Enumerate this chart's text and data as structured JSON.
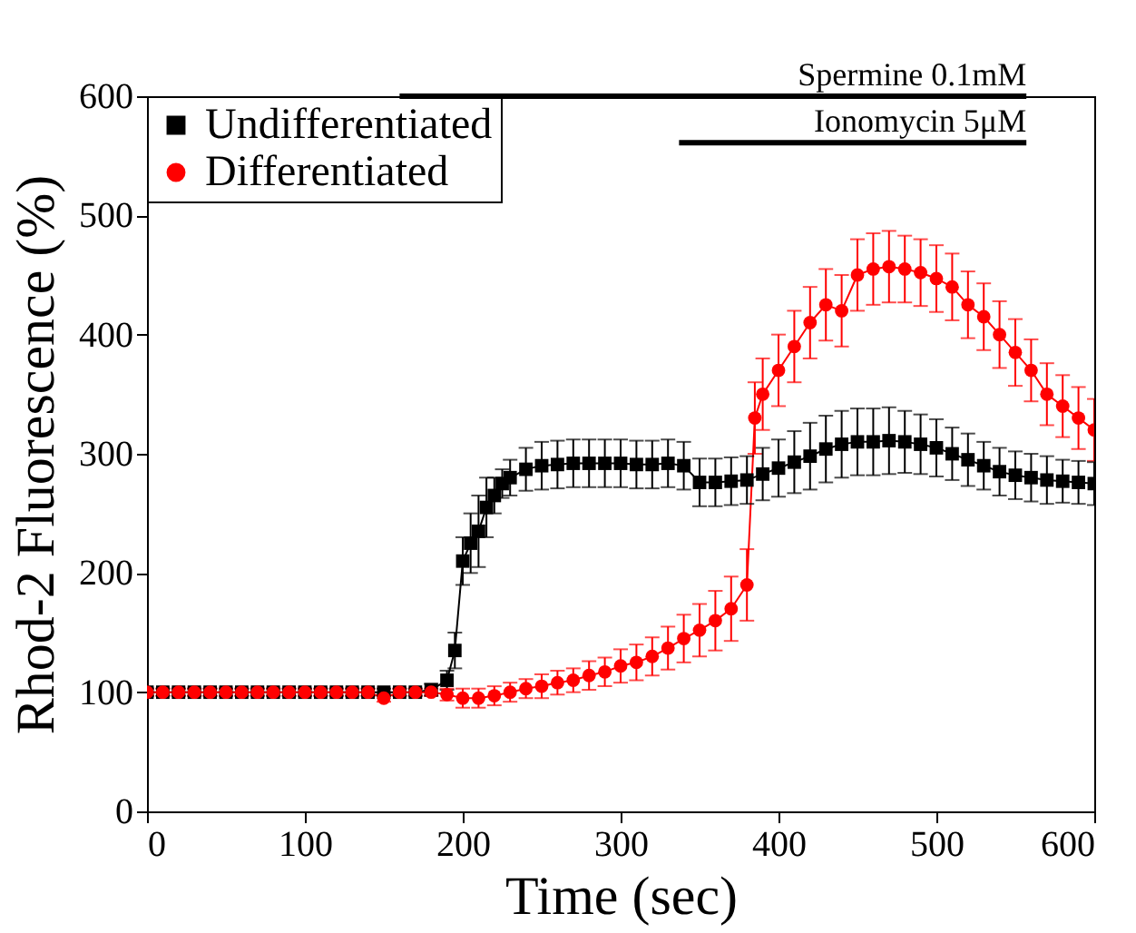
{
  "chart_data": {
    "type": "line",
    "xlabel": "Time (sec)",
    "ylabel": "Rhod-2 Fluorescence (%)",
    "xlim": [
      0,
      600
    ],
    "xticks": [
      0,
      100,
      200,
      300,
      400,
      500,
      600
    ],
    "ylim": [
      0,
      600
    ],
    "yticks": [
      0,
      100,
      200,
      300,
      400,
      500,
      600
    ],
    "grid": false,
    "legend": "top left",
    "series": [
      {
        "name": "Spermine 0.1mM",
        "color": "#000000",
        "type": "line",
        "marker": "none",
        "x": [
          160,
          557
        ],
        "values": [
          600,
          600
        ]
      },
      {
        "name": "Ionomycin 5μM",
        "color": "#000000",
        "type": "line",
        "marker": "none",
        "x": [
          337,
          557
        ],
        "values": [
          561,
          561
        ]
      },
      {
        "name": "Undifferentiated",
        "color": "#000000",
        "marker": "square",
        "x": [
          0,
          10,
          20,
          30,
          40,
          50,
          60,
          70,
          80,
          90,
          100,
          110,
          120,
          130,
          140,
          150,
          160,
          170,
          180,
          190,
          195,
          200,
          205,
          210,
          215,
          220,
          225,
          230,
          240,
          250,
          260,
          270,
          280,
          290,
          300,
          310,
          320,
          330,
          340,
          350,
          360,
          370,
          380,
          390,
          400,
          410,
          420,
          430,
          440,
          450,
          460,
          470,
          480,
          490,
          500,
          510,
          520,
          530,
          540,
          550,
          560,
          570,
          580,
          590,
          600
        ],
        "values": [
          100,
          100,
          100,
          100,
          100,
          100,
          100,
          100,
          100,
          100,
          100,
          100,
          100,
          100,
          100,
          100,
          100,
          100,
          102,
          110,
          135,
          210,
          225,
          235,
          255,
          265,
          275,
          280,
          287,
          290,
          291,
          292,
          292,
          292,
          292,
          291,
          291,
          292,
          290,
          276,
          276,
          277,
          278,
          283,
          288,
          293,
          298,
          304,
          308,
          310,
          310,
          311,
          310,
          308,
          305,
          300,
          295,
          290,
          285,
          282,
          280,
          278,
          277,
          276,
          275
        ],
        "errors": [
          3,
          3,
          3,
          3,
          3,
          3,
          3,
          3,
          3,
          3,
          3,
          3,
          3,
          3,
          3,
          3,
          3,
          3,
          5,
          8,
          15,
          20,
          25,
          30,
          25,
          15,
          12,
          15,
          18,
          20,
          20,
          20,
          20,
          20,
          20,
          20,
          20,
          20,
          20,
          20,
          20,
          20,
          20,
          22,
          24,
          26,
          28,
          28,
          28,
          28,
          28,
          28,
          26,
          25,
          24,
          22,
          22,
          20,
          20,
          20,
          20,
          20,
          18,
          18,
          18
        ]
      },
      {
        "name": "Differentiated",
        "color": "#ff0000",
        "marker": "circle",
        "x": [
          0,
          10,
          20,
          30,
          40,
          50,
          60,
          70,
          80,
          90,
          100,
          110,
          120,
          130,
          140,
          150,
          160,
          170,
          180,
          190,
          200,
          210,
          220,
          230,
          240,
          250,
          260,
          270,
          280,
          290,
          300,
          310,
          320,
          330,
          340,
          350,
          360,
          370,
          380,
          385,
          390,
          400,
          410,
          420,
          430,
          440,
          450,
          460,
          470,
          480,
          490,
          500,
          510,
          520,
          530,
          540,
          550,
          560,
          570,
          580,
          590,
          600
        ],
        "values": [
          100,
          100,
          100,
          100,
          100,
          100,
          100,
          100,
          100,
          100,
          100,
          100,
          100,
          100,
          100,
          95,
          100,
          100,
          100,
          98,
          95,
          95,
          97,
          100,
          103,
          105,
          108,
          110,
          114,
          117,
          122,
          125,
          130,
          137,
          145,
          152,
          160,
          170,
          190,
          330,
          350,
          370,
          390,
          410,
          425,
          420,
          450,
          455,
          457,
          455,
          452,
          447,
          440,
          425,
          415,
          400,
          385,
          370,
          350,
          340,
          330,
          320
        ],
        "errors": [
          3,
          3,
          3,
          3,
          3,
          3,
          3,
          3,
          3,
          3,
          3,
          3,
          3,
          3,
          3,
          3,
          3,
          3,
          3,
          5,
          8,
          8,
          8,
          8,
          8,
          10,
          10,
          10,
          12,
          12,
          14,
          15,
          16,
          18,
          20,
          22,
          25,
          27,
          30,
          30,
          30,
          30,
          30,
          30,
          30,
          30,
          30,
          30,
          30,
          28,
          28,
          28,
          28,
          28,
          28,
          28,
          28,
          26,
          26,
          26,
          26,
          26
        ]
      }
    ]
  }
}
